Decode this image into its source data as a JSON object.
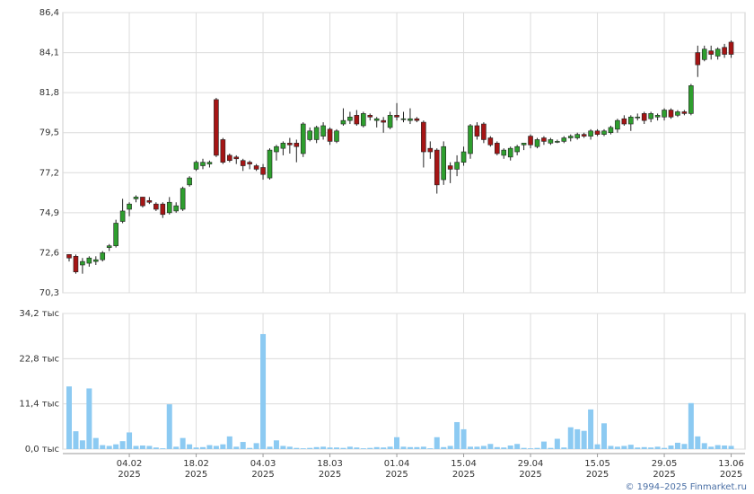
{
  "chart_data": {
    "type": "candlestick",
    "categories": [
      null,
      null,
      null,
      null,
      null,
      null,
      null,
      null,
      null,
      [
        "04.02",
        "2025"
      ],
      null,
      null,
      null,
      null,
      null,
      null,
      null,
      null,
      null,
      [
        "18.02",
        "2025"
      ],
      null,
      null,
      null,
      null,
      null,
      null,
      null,
      null,
      null,
      [
        "04.03",
        "2025"
      ],
      null,
      null,
      null,
      null,
      null,
      null,
      null,
      null,
      null,
      [
        "18.03",
        "2025"
      ],
      null,
      null,
      null,
      null,
      null,
      null,
      null,
      null,
      null,
      [
        "01.04",
        "2025"
      ],
      null,
      null,
      null,
      null,
      null,
      null,
      null,
      null,
      null,
      [
        "15.04",
        "2025"
      ],
      null,
      null,
      null,
      null,
      null,
      null,
      null,
      null,
      null,
      [
        "29.04",
        "2025"
      ],
      null,
      null,
      null,
      null,
      null,
      null,
      null,
      null,
      null,
      [
        "15.05",
        "2025"
      ],
      null,
      null,
      null,
      null,
      null,
      null,
      null,
      null,
      null,
      [
        "29.05",
        "2025"
      ],
      null,
      null,
      null,
      null,
      null,
      null,
      null,
      null,
      null,
      [
        "13.06",
        "2025"
      ]
    ],
    "open": [
      72.5,
      72.4,
      71.9,
      72.0,
      72.1,
      72.2,
      72.9,
      73.0,
      74.4,
      75.1,
      75.7,
      75.8,
      75.6,
      75.4,
      75.4,
      74.9,
      75.0,
      75.1,
      76.5,
      77.4,
      77.6,
      77.7,
      81.4,
      79.1,
      78.2,
      78.1,
      77.9,
      77.8,
      77.6,
      77.5,
      76.9,
      78.4,
      78.6,
      78.9,
      78.9,
      78.3,
      79.1,
      79.1,
      79.3,
      79.7,
      79.0,
      80.0,
      80.2,
      80.5,
      79.9,
      80.5,
      80.2,
      80.2,
      79.8,
      80.5,
      80.3,
      80.2,
      80.3,
      80.1,
      78.6,
      78.5,
      76.8,
      77.6,
      77.4,
      77.8,
      78.3,
      79.9,
      80.0,
      79.2,
      78.9,
      78.2,
      78.1,
      78.4,
      78.8,
      79.3,
      78.7,
      79.2,
      78.9,
      79.0,
      79.0,
      79.2,
      79.2,
      79.4,
      79.3,
      79.6,
      79.4,
      79.5,
      79.7,
      80.3,
      80.0,
      80.4,
      80.6,
      80.3,
      80.4,
      80.4,
      80.8,
      80.5,
      80.7,
      80.6,
      84.1,
      83.7,
      84.2,
      83.9,
      84.4,
      84.7
    ],
    "high": [
      72.5,
      72.5,
      72.3,
      72.4,
      72.4,
      72.7,
      73.1,
      74.5,
      75.7,
      75.5,
      75.9,
      75.8,
      75.8,
      75.5,
      75.5,
      75.8,
      75.5,
      76.4,
      77.0,
      77.9,
      78.0,
      77.9,
      81.5,
      79.2,
      78.3,
      78.2,
      78.0,
      77.9,
      77.7,
      77.7,
      78.6,
      78.8,
      79.0,
      79.2,
      79.1,
      80.1,
      79.8,
      79.9,
      80.1,
      79.8,
      79.7,
      80.9,
      80.7,
      80.8,
      80.7,
      80.6,
      80.4,
      80.4,
      80.7,
      81.2,
      80.7,
      80.9,
      80.4,
      80.2,
      79.0,
      78.6,
      79.0,
      77.8,
      78.2,
      78.7,
      80.0,
      80.1,
      80.1,
      79.3,
      79.0,
      78.6,
      78.7,
      78.8,
      78.9,
      79.4,
      79.2,
      79.3,
      79.2,
      79.1,
      79.3,
      79.4,
      79.5,
      79.5,
      79.7,
      79.7,
      79.7,
      79.9,
      80.3,
      80.5,
      80.5,
      80.6,
      80.7,
      80.7,
      80.6,
      80.9,
      80.9,
      80.8,
      80.8,
      82.3,
      84.5,
      84.5,
      84.5,
      84.4,
      84.6,
      84.8
    ],
    "low": [
      72.1,
      71.4,
      71.4,
      71.8,
      71.9,
      72.1,
      72.7,
      72.9,
      74.3,
      74.7,
      75.5,
      75.2,
      75.4,
      75.0,
      74.6,
      74.8,
      74.9,
      75.0,
      76.4,
      77.3,
      77.4,
      77.5,
      78.1,
      77.7,
      77.8,
      77.7,
      77.3,
      77.4,
      77.3,
      76.8,
      76.8,
      77.9,
      78.2,
      78.3,
      77.8,
      78.1,
      79.0,
      78.9,
      79.1,
      78.8,
      78.9,
      79.9,
      80.0,
      79.9,
      79.8,
      80.2,
      79.8,
      79.5,
      79.7,
      80.2,
      80.1,
      80.0,
      80.1,
      77.5,
      78.0,
      76.0,
      76.5,
      76.6,
      77.0,
      77.6,
      78.0,
      79.1,
      78.9,
      78.7,
      78.2,
      78.0,
      77.9,
      78.2,
      78.5,
      78.6,
      78.6,
      78.8,
      78.8,
      78.9,
      78.9,
      79.0,
      79.1,
      79.2,
      79.1,
      79.3,
      79.3,
      79.4,
      79.5,
      79.9,
      79.6,
      80.2,
      80.0,
      80.1,
      80.2,
      80.2,
      80.3,
      80.4,
      80.5,
      80.5,
      82.7,
      83.6,
      83.7,
      83.7,
      83.8,
      83.8
    ],
    "close": [
      72.3,
      71.5,
      72.1,
      72.3,
      72.2,
      72.6,
      73.0,
      74.3,
      75.0,
      75.4,
      75.8,
      75.3,
      75.5,
      75.1,
      74.8,
      75.5,
      75.3,
      76.3,
      76.9,
      77.8,
      77.8,
      77.8,
      78.2,
      77.8,
      77.9,
      78.0,
      77.6,
      77.7,
      77.4,
      77.1,
      78.5,
      78.7,
      78.9,
      78.8,
      78.7,
      80.0,
      79.6,
      79.8,
      79.9,
      79.0,
      79.6,
      80.2,
      80.4,
      80.0,
      80.6,
      80.4,
      80.3,
      80.1,
      80.5,
      80.4,
      80.3,
      80.3,
      80.2,
      78.4,
      78.4,
      76.5,
      78.7,
      77.4,
      77.8,
      78.4,
      79.9,
      79.3,
      79.1,
      78.8,
      78.3,
      78.5,
      78.6,
      78.7,
      78.9,
      78.8,
      79.1,
      79.0,
      79.1,
      79.0,
      79.2,
      79.3,
      79.4,
      79.3,
      79.6,
      79.4,
      79.6,
      79.8,
      80.2,
      80.0,
      80.4,
      80.4,
      80.2,
      80.6,
      80.5,
      80.8,
      80.4,
      80.7,
      80.6,
      82.2,
      83.4,
      84.3,
      84.0,
      84.3,
      84.0,
      84.0
    ],
    "up_color": "#2e9e2e",
    "down_color": "#a51515",
    "ylim": [
      70.3,
      86.4
    ],
    "yticks": [
      {
        "value": 70.3,
        "label": "70,3"
      },
      {
        "value": 72.6,
        "label": "72,6"
      },
      {
        "value": 74.9,
        "label": "74,9"
      },
      {
        "value": 77.2,
        "label": "77,2"
      },
      {
        "value": 79.5,
        "label": "79,5"
      },
      {
        "value": 81.8,
        "label": "81,8"
      },
      {
        "value": 84.1,
        "label": "84,1"
      },
      {
        "value": 86.4,
        "label": "86,4"
      }
    ],
    "volume": {
      "color": "#8ccaf2",
      "values": [
        15.8,
        4.5,
        2.2,
        15.3,
        2.8,
        1.0,
        0.8,
        1.2,
        2.0,
        4.2,
        0.8,
        0.9,
        0.8,
        0.4,
        0.2,
        11.3,
        0.6,
        2.8,
        1.2,
        0.4,
        0.5,
        1.0,
        0.8,
        1.2,
        3.2,
        0.6,
        1.8,
        0.3,
        1.5,
        29.0,
        0.6,
        2.2,
        0.8,
        0.6,
        0.3,
        0.2,
        0.3,
        0.5,
        0.6,
        0.4,
        0.4,
        0.3,
        0.6,
        0.4,
        0.2,
        0.3,
        0.5,
        0.4,
        0.6,
        3.0,
        0.6,
        0.5,
        0.5,
        0.6,
        0.2,
        3.0,
        0.5,
        0.8,
        6.8,
        5.0,
        0.6,
        0.6,
        0.8,
        1.3,
        0.5,
        0.4,
        0.9,
        1.3,
        0.3,
        0.2,
        0.3,
        1.9,
        0.3,
        2.6,
        0.4,
        5.5,
        5.0,
        4.6,
        10.0,
        1.2,
        6.5,
        0.8,
        0.6,
        0.8,
        1.1,
        0.4,
        0.5,
        0.4,
        0.6,
        0.3,
        0.9,
        1.6,
        1.3,
        11.6,
        3.2,
        1.5,
        0.6,
        1.0,
        0.9,
        0.8
      ],
      "ylim": [
        0,
        34.2
      ],
      "yticks": [
        {
          "value": 0,
          "label": "0,0 тыс"
        },
        {
          "value": 11.4,
          "label": "11,4 тыс"
        },
        {
          "value": 22.8,
          "label": "22,8 тыс"
        },
        {
          "value": 34.2,
          "label": "34,2 тыс"
        }
      ]
    },
    "copyright": "© 1994–2025 Finmarket.ru"
  }
}
